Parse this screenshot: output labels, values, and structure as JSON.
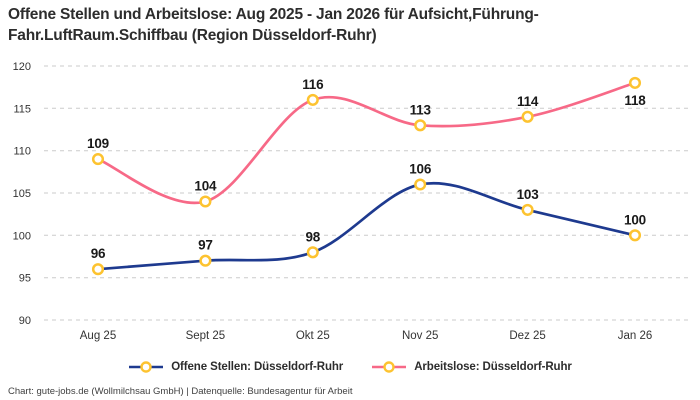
{
  "title": "Offene Stellen und Arbeitslose: Aug 2025 - Jan 2026 für Aufsicht,Führung-Fahr.LuftRaum.Schiffbau (Region Düsseldorf-Ruhr)",
  "footer": "Chart: gute-jobs.de (Wollmilchsau GmbH) | Datenquelle: Bundesagentur für Arbeit",
  "colors": {
    "offene_stellen": "#1e3a8f",
    "arbeitslose": "#f76987",
    "marker": "#fdc330",
    "marker_fill": "#ffffff",
    "grid": "#cbcbcb",
    "axis_text": "#333333",
    "data_label": "#1a1a1a"
  },
  "chart_data": {
    "type": "line",
    "categories": [
      "Aug 25",
      "Sept 25",
      "Okt 25",
      "Nov 25",
      "Dez 25",
      "Jan 26"
    ],
    "series": [
      {
        "name": "Offene Stellen: Düsseldorf-Ruhr",
        "values": [
          96,
          97,
          98,
          106,
          103,
          100
        ],
        "color_key": "offene_stellen",
        "label_positions": [
          "above",
          "above",
          "above",
          "above",
          "above",
          "above"
        ]
      },
      {
        "name": "Arbeitslose: Düsseldorf-Ruhr",
        "values": [
          109,
          104,
          116,
          113,
          114,
          118
        ],
        "color_key": "arbeitslose",
        "label_positions": [
          "above",
          "above",
          "above",
          "above",
          "above",
          "below"
        ]
      }
    ],
    "ylim": [
      90,
      120
    ],
    "yticks": [
      90,
      95,
      100,
      105,
      110,
      115,
      120
    ],
    "grid": "dashed-horizontal",
    "legend_position": "bottom",
    "line_style": "smooth",
    "marker": "open-circle"
  }
}
